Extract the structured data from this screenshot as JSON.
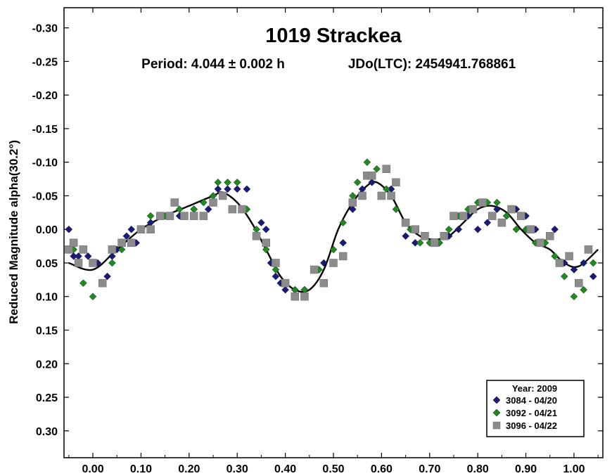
{
  "chart_data": {
    "type": "scatter",
    "title": "1019 Strackea",
    "subtitle_period": "Period: 4.044 ± 0.002 h",
    "subtitle_epoch": "JDo(LTC): 2454941.768861",
    "ylabel": "Reduced Magnitude alpha(30.2°)",
    "xlabel": "",
    "xlim": [
      -0.06,
      1.06
    ],
    "ylim": [
      -0.33,
      0.34
    ],
    "y_inverted": true,
    "x_ticks": [
      0.0,
      0.1,
      0.2,
      0.3,
      0.4,
      0.5,
      0.6,
      0.7,
      0.8,
      0.9,
      1.0
    ],
    "x_tick_labels": [
      "0.00",
      "0.10",
      "0.20",
      "0.30",
      "0.40",
      "0.50",
      "0.60",
      "0.70",
      "0.80",
      "0.90",
      "1.00"
    ],
    "y_ticks": [
      -0.3,
      -0.25,
      -0.2,
      -0.15,
      -0.1,
      -0.05,
      0.0,
      0.05,
      0.1,
      0.15,
      0.2,
      0.25,
      0.3
    ],
    "y_tick_labels": [
      "-0.30",
      "-0.25",
      "-0.20",
      "-0.15",
      "-0.10",
      "-0.05",
      "0.00",
      "0.05",
      "0.10",
      "0.15",
      "0.20",
      "0.25",
      "0.30"
    ],
    "legend_title": "Year: 2009",
    "legend_position": "bottom-right",
    "series": [
      {
        "name": "3084 - 04/20",
        "marker": "diamond",
        "color": "#1a1a7a",
        "points": [
          [
            -0.05,
            0.0
          ],
          [
            -0.04,
            0.04
          ],
          [
            -0.03,
            0.04
          ],
          [
            -0.01,
            0.04
          ],
          [
            0.0,
            0.05
          ],
          [
            0.01,
            0.05
          ],
          [
            0.02,
            0.08
          ],
          [
            0.03,
            0.07
          ],
          [
            0.04,
            0.04
          ],
          [
            0.05,
            0.03
          ],
          [
            0.06,
            0.02
          ],
          [
            0.07,
            0.01
          ],
          [
            0.08,
            0.0
          ],
          [
            0.09,
            0.02
          ],
          [
            0.12,
            -0.01
          ],
          [
            0.15,
            -0.02
          ],
          [
            0.18,
            -0.02
          ],
          [
            0.21,
            -0.03
          ],
          [
            0.24,
            -0.03
          ],
          [
            0.26,
            -0.06
          ],
          [
            0.28,
            -0.06
          ],
          [
            0.3,
            -0.06
          ],
          [
            0.32,
            -0.06
          ],
          [
            0.35,
            -0.01
          ],
          [
            0.36,
            0.0
          ],
          [
            0.37,
            0.05
          ],
          [
            0.38,
            0.07
          ],
          [
            0.39,
            0.08
          ],
          [
            0.4,
            0.09
          ],
          [
            0.42,
            0.09
          ],
          [
            0.44,
            0.09
          ],
          [
            0.46,
            0.06
          ],
          [
            0.48,
            0.05
          ],
          [
            0.52,
            0.02
          ],
          [
            0.54,
            -0.03
          ],
          [
            0.56,
            -0.06
          ],
          [
            0.58,
            -0.07
          ],
          [
            0.6,
            -0.05
          ],
          [
            0.62,
            -0.06
          ],
          [
            0.65,
            0.01
          ],
          [
            0.67,
            0.02
          ],
          [
            0.69,
            0.01
          ],
          [
            0.72,
            0.02
          ],
          [
            0.74,
            0.01
          ],
          [
            0.76,
            0.0
          ],
          [
            0.78,
            -0.02
          ],
          [
            0.8,
            0.0
          ],
          [
            0.82,
            -0.01
          ],
          [
            0.84,
            -0.03
          ],
          [
            0.86,
            -0.02
          ],
          [
            0.88,
            -0.03
          ],
          [
            0.9,
            -0.02
          ],
          [
            0.92,
            0.0
          ],
          [
            0.94,
            0.02
          ],
          [
            0.96,
            0.0
          ],
          [
            0.98,
            0.05
          ],
          [
            1.0,
            0.06
          ],
          [
            1.02,
            0.05
          ],
          [
            1.04,
            0.07
          ]
        ]
      },
      {
        "name": "3092 - 04/21",
        "marker": "diamond",
        "color": "#1f8a1f",
        "points": [
          [
            -0.04,
            0.03
          ],
          [
            -0.02,
            0.08
          ],
          [
            0.0,
            0.1
          ],
          [
            0.02,
            0.08
          ],
          [
            0.04,
            0.05
          ],
          [
            0.06,
            0.03
          ],
          [
            0.08,
            0.02
          ],
          [
            0.1,
            0.0
          ],
          [
            0.12,
            -0.02
          ],
          [
            0.15,
            -0.02
          ],
          [
            0.18,
            -0.03
          ],
          [
            0.21,
            -0.03
          ],
          [
            0.23,
            -0.04
          ],
          [
            0.25,
            -0.05
          ],
          [
            0.26,
            -0.07
          ],
          [
            0.28,
            -0.07
          ],
          [
            0.3,
            -0.07
          ],
          [
            0.32,
            -0.03
          ],
          [
            0.34,
            0.0
          ],
          [
            0.36,
            0.03
          ],
          [
            0.38,
            0.06
          ],
          [
            0.4,
            0.08
          ],
          [
            0.42,
            0.09
          ],
          [
            0.44,
            0.09
          ],
          [
            0.47,
            0.06
          ],
          [
            0.5,
            0.03
          ],
          [
            0.52,
            -0.01
          ],
          [
            0.54,
            -0.05
          ],
          [
            0.55,
            -0.07
          ],
          [
            0.57,
            -0.1
          ],
          [
            0.59,
            -0.09
          ],
          [
            0.61,
            -0.06
          ],
          [
            0.63,
            -0.03
          ],
          [
            0.66,
            0.0
          ],
          [
            0.68,
            0.02
          ],
          [
            0.7,
            0.02
          ],
          [
            0.72,
            0.02
          ],
          [
            0.74,
            0.0
          ],
          [
            0.76,
            -0.02
          ],
          [
            0.78,
            -0.03
          ],
          [
            0.8,
            -0.04
          ],
          [
            0.82,
            -0.04
          ],
          [
            0.84,
            -0.04
          ],
          [
            0.86,
            -0.02
          ],
          [
            0.88,
            0.0
          ],
          [
            0.9,
            0.0
          ],
          [
            0.92,
            0.02
          ],
          [
            0.94,
            0.02
          ],
          [
            0.96,
            0.04
          ],
          [
            0.98,
            0.07
          ],
          [
            1.0,
            0.1
          ],
          [
            1.02,
            0.09
          ],
          [
            1.04,
            0.05
          ]
        ]
      },
      {
        "name": "3096 - 04/22",
        "marker": "square",
        "color": "#8c8c8c",
        "points": [
          [
            -0.05,
            0.03
          ],
          [
            -0.04,
            0.02
          ],
          [
            -0.03,
            0.05
          ],
          [
            -0.02,
            0.03
          ],
          [
            0.0,
            0.05
          ],
          [
            0.02,
            0.08
          ],
          [
            0.04,
            0.03
          ],
          [
            0.06,
            0.02
          ],
          [
            0.08,
            0.02
          ],
          [
            0.1,
            0.0
          ],
          [
            0.12,
            0.0
          ],
          [
            0.14,
            -0.02
          ],
          [
            0.16,
            -0.02
          ],
          [
            0.17,
            -0.04
          ],
          [
            0.19,
            -0.02
          ],
          [
            0.21,
            -0.02
          ],
          [
            0.23,
            -0.02
          ],
          [
            0.25,
            -0.04
          ],
          [
            0.27,
            -0.05
          ],
          [
            0.29,
            -0.03
          ],
          [
            0.31,
            -0.03
          ],
          [
            0.34,
            0.01
          ],
          [
            0.36,
            0.02
          ],
          [
            0.38,
            0.05
          ],
          [
            0.4,
            0.08
          ],
          [
            0.42,
            0.1
          ],
          [
            0.44,
            0.1
          ],
          [
            0.46,
            0.06
          ],
          [
            0.48,
            0.08
          ],
          [
            0.5,
            0.05
          ],
          [
            0.52,
            0.04
          ],
          [
            0.54,
            -0.04
          ],
          [
            0.56,
            -0.05
          ],
          [
            0.57,
            -0.08
          ],
          [
            0.58,
            -0.08
          ],
          [
            0.6,
            -0.05
          ],
          [
            0.61,
            -0.09
          ],
          [
            0.62,
            -0.05
          ],
          [
            0.63,
            -0.07
          ],
          [
            0.65,
            -0.01
          ],
          [
            0.67,
            0.0
          ],
          [
            0.69,
            0.01
          ],
          [
            0.71,
            0.02
          ],
          [
            0.73,
            0.01
          ],
          [
            0.75,
            -0.02
          ],
          [
            0.77,
            -0.02
          ],
          [
            0.79,
            -0.03
          ],
          [
            0.81,
            -0.04
          ],
          [
            0.83,
            -0.02
          ],
          [
            0.85,
            -0.01
          ],
          [
            0.87,
            -0.03
          ],
          [
            0.89,
            -0.02
          ],
          [
            0.91,
            0.0
          ],
          [
            0.93,
            0.02
          ],
          [
            0.95,
            0.01
          ],
          [
            0.97,
            0.05
          ],
          [
            0.99,
            0.04
          ],
          [
            1.01,
            0.08
          ],
          [
            1.03,
            0.03
          ]
        ]
      }
    ],
    "fit_curve": [
      [
        -0.05,
        0.05
      ],
      [
        0.0,
        0.06
      ],
      [
        0.05,
        0.03
      ],
      [
        0.1,
        0.0
      ],
      [
        0.15,
        -0.02
      ],
      [
        0.2,
        -0.035
      ],
      [
        0.25,
        -0.05
      ],
      [
        0.27,
        -0.055
      ],
      [
        0.3,
        -0.04
      ],
      [
        0.33,
        -0.01
      ],
      [
        0.36,
        0.03
      ],
      [
        0.39,
        0.07
      ],
      [
        0.42,
        0.09
      ],
      [
        0.45,
        0.09
      ],
      [
        0.48,
        0.06
      ],
      [
        0.51,
        0.0
      ],
      [
        0.54,
        -0.04
      ],
      [
        0.57,
        -0.065
      ],
      [
        0.59,
        -0.07
      ],
      [
        0.62,
        -0.05
      ],
      [
        0.65,
        -0.01
      ],
      [
        0.68,
        0.01
      ],
      [
        0.71,
        0.015
      ],
      [
        0.74,
        0.01
      ],
      [
        0.77,
        -0.01
      ],
      [
        0.8,
        -0.03
      ],
      [
        0.83,
        -0.035
      ],
      [
        0.86,
        -0.025
      ],
      [
        0.89,
        0.0
      ],
      [
        0.92,
        0.02
      ],
      [
        0.95,
        0.03
      ],
      [
        0.98,
        0.05
      ],
      [
        1.01,
        0.055
      ],
      [
        1.05,
        0.03
      ]
    ]
  }
}
